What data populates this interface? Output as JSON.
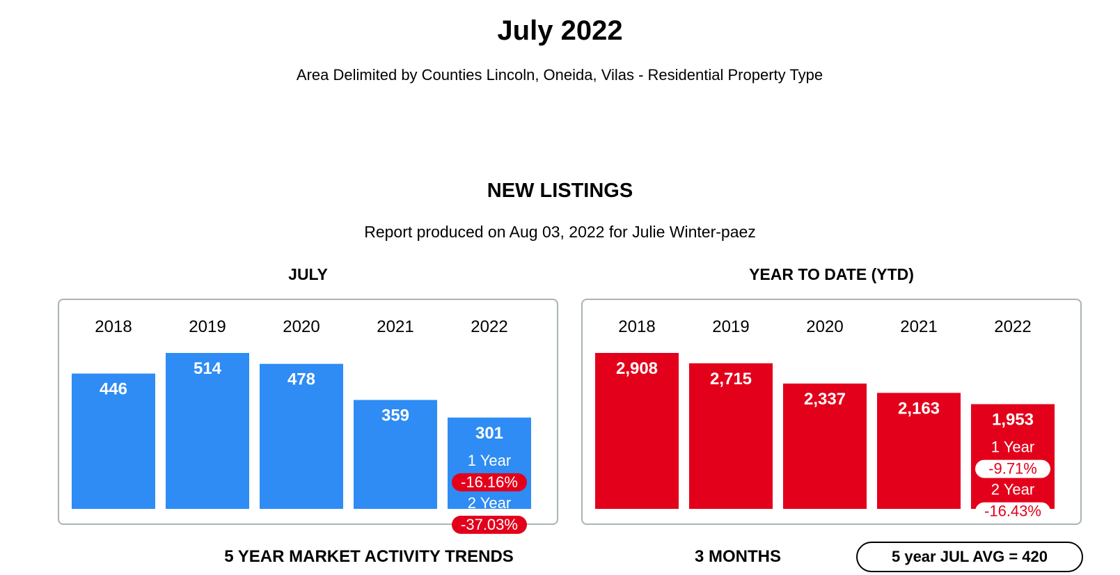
{
  "header": {
    "title": "July 2022",
    "subtitle": "Area Delimited by Counties Lincoln, Oneida, Vilas - Residential Property Type",
    "section": "NEW LISTINGS",
    "produced": "Report produced on Aug 03, 2022 for Julie Winter-paez"
  },
  "colors": {
    "month_bar": "#2e8cf4",
    "ytd_bar": "#e3001b",
    "negative_badge": "#e3001b",
    "panel_border": "#a9b4b3"
  },
  "chart_data": [
    {
      "type": "bar",
      "title": "JULY",
      "categories": [
        "2018",
        "2019",
        "2020",
        "2021",
        "2022"
      ],
      "values": [
        446,
        514,
        478,
        359,
        301
      ],
      "value_labels": [
        "446",
        "514",
        "478",
        "359",
        "301"
      ],
      "change": {
        "one_year_label": "1 Year",
        "one_year_value": "-16.16%",
        "two_year_label": "2 Year",
        "two_year_value": "-37.03%"
      }
    },
    {
      "type": "bar",
      "title": "YEAR TO DATE (YTD)",
      "categories": [
        "2018",
        "2019",
        "2020",
        "2021",
        "2022"
      ],
      "values": [
        2908,
        2715,
        2337,
        2163,
        1953
      ],
      "value_labels": [
        "2,908",
        "2,715",
        "2,337",
        "2,163",
        "1,953"
      ],
      "change": {
        "one_year_label": "1 Year",
        "one_year_value": "-9.71%",
        "two_year_label": "2 Year",
        "two_year_value": "-16.43%"
      }
    }
  ],
  "footer": {
    "trends": "5 YEAR MARKET ACTIVITY TRENDS",
    "months": "3 MONTHS",
    "average": "5 year JUL AVG = 420"
  }
}
